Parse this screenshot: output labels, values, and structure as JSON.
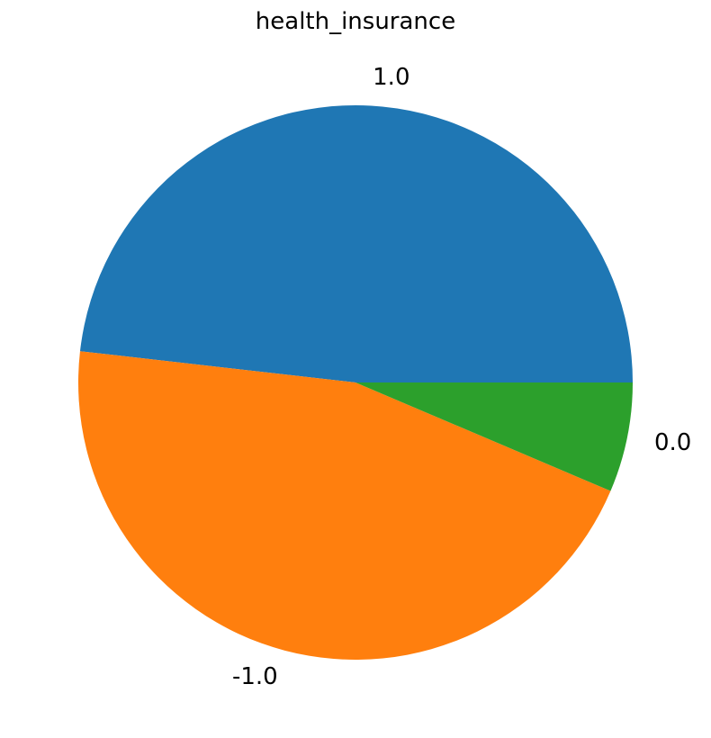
{
  "chart_data": {
    "type": "pie",
    "title": "health_insurance",
    "start_angle_deg": 0,
    "direction": "counterclockwise",
    "slices": [
      {
        "label": "1.0",
        "value": 48.2,
        "color": "#1f77b4"
      },
      {
        "label": "-1.0",
        "value": 45.4,
        "color": "#ff7f0e"
      },
      {
        "label": "0.0",
        "value": 6.4,
        "color": "#2ca02c"
      }
    ]
  }
}
